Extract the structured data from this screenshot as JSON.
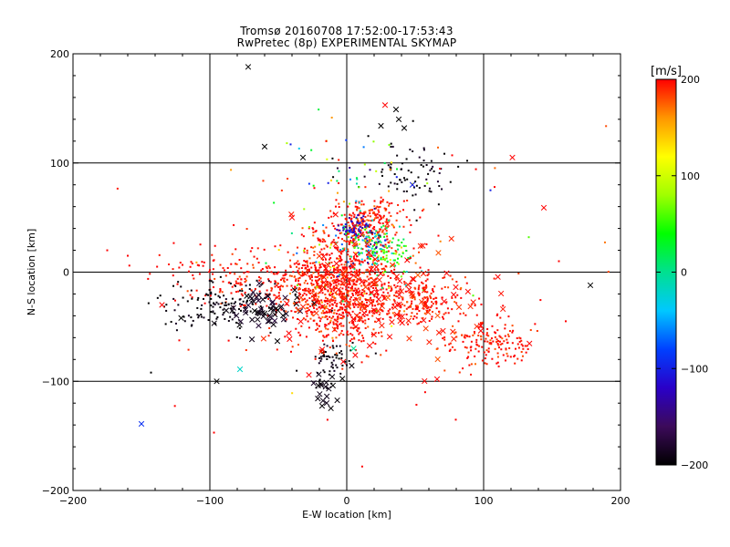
{
  "chart_data": {
    "type": "scatter",
    "title": "Tromsø 20160708 17:52:00-17:53:43",
    "subtitle": "RwPretec (8p) EXPERIMENTAL SKYMAP",
    "xlabel": "E-W location [km]",
    "ylabel": "N-S location [km]",
    "xlim": [
      -200,
      200
    ],
    "ylim": [
      -200,
      200
    ],
    "xticks": [
      -200,
      -100,
      0,
      100,
      200
    ],
    "yticks": [
      -200,
      -100,
      0,
      100,
      200
    ],
    "grid_lines": [
      -100,
      0,
      100
    ],
    "colorbar": {
      "label": "[m/s]",
      "range": [
        -200,
        200
      ],
      "ticks": [
        200,
        100,
        0,
        -100,
        -200
      ],
      "colormap": [
        "#000000",
        "#3c0a5a",
        "#2a00c8",
        "#0040ff",
        "#00c8ff",
        "#00e090",
        "#00ff00",
        "#a0ff00",
        "#ffff00",
        "#ff9600",
        "#ff0000"
      ]
    },
    "marker_legend": {
      "dot": "small point",
      "cross": "x marker"
    },
    "clusters": [
      {
        "center": [
          -5,
          -15
        ],
        "spread": [
          18,
          25
        ],
        "count": 900,
        "velocity": 200,
        "vspread": 15,
        "marker": "dot"
      },
      {
        "center": [
          50,
          -25
        ],
        "spread": [
          20,
          12
        ],
        "count": 220,
        "velocity": 195,
        "vspread": 10,
        "marker": "dot"
      },
      {
        "center": [
          105,
          -65
        ],
        "spread": [
          18,
          10
        ],
        "count": 160,
        "velocity": 195,
        "vspread": 10,
        "marker": "dot"
      },
      {
        "center": [
          -50,
          -10
        ],
        "spread": [
          28,
          15
        ],
        "count": 180,
        "velocity": 195,
        "vspread": 10,
        "marker": "dot"
      },
      {
        "center": [
          -100,
          5
        ],
        "spread": [
          25,
          10
        ],
        "count": 50,
        "velocity": 200,
        "vspread": 5,
        "marker": "dot"
      },
      {
        "center": [
          15,
          45
        ],
        "spread": [
          12,
          12
        ],
        "count": 220,
        "velocity": 195,
        "vspread": 15,
        "marker": "dot"
      },
      {
        "center": [
          -90,
          -30
        ],
        "spread": [
          22,
          12
        ],
        "count": 140,
        "velocity": -195,
        "vspread": 8,
        "marker": "dot"
      },
      {
        "center": [
          -60,
          -35
        ],
        "spread": [
          15,
          10
        ],
        "count": 60,
        "velocity": -190,
        "vspread": 10,
        "marker": "cross"
      },
      {
        "center": [
          -10,
          -80
        ],
        "spread": [
          8,
          10
        ],
        "count": 60,
        "velocity": -195,
        "vspread": 8,
        "marker": "dot"
      },
      {
        "center": [
          -15,
          -105
        ],
        "spread": [
          6,
          8
        ],
        "count": 20,
        "velocity": -195,
        "vspread": 5,
        "marker": "cross"
      },
      {
        "center": [
          45,
          90
        ],
        "spread": [
          15,
          15
        ],
        "count": 70,
        "velocity": -195,
        "vspread": 8,
        "marker": "dot"
      },
      {
        "center": [
          15,
          30
        ],
        "spread": [
          10,
          10
        ],
        "count": 120,
        "velocity": -20,
        "vspread": 80,
        "marker": "dot"
      },
      {
        "center": [
          5,
          40
        ],
        "spread": [
          6,
          6
        ],
        "count": 50,
        "velocity": -120,
        "vspread": 15,
        "marker": "dot"
      },
      {
        "center": [
          30,
          15
        ],
        "spread": [
          10,
          8
        ],
        "count": 70,
        "velocity": 40,
        "vspread": 40,
        "marker": "dot"
      },
      {
        "center": [
          10,
          5
        ],
        "spread": [
          25,
          25
        ],
        "count": 60,
        "velocity": 60,
        "vspread": 80,
        "marker": "dot"
      },
      {
        "center": [
          10,
          95
        ],
        "spread": [
          25,
          20
        ],
        "count": 50,
        "velocity": 0,
        "vspread": 120,
        "marker": "dot"
      },
      {
        "center": [
          10,
          -20
        ],
        "spread": [
          30,
          30
        ],
        "count": 110,
        "velocity": 195,
        "vspread": 10,
        "marker": "cross"
      },
      {
        "center": [
          60,
          -40
        ],
        "spread": [
          30,
          20
        ],
        "count": 35,
        "velocity": 195,
        "vspread": 10,
        "marker": "cross"
      },
      {
        "center": [
          0,
          0
        ],
        "spread": [
          80,
          60
        ],
        "count": 90,
        "velocity": 190,
        "vspread": 20,
        "marker": "dot"
      }
    ],
    "points": [
      {
        "x": -72,
        "y": 188,
        "v": -200,
        "m": "cross"
      },
      {
        "x": 28,
        "y": 153,
        "v": 200,
        "m": "cross"
      },
      {
        "x": 36,
        "y": 149,
        "v": -200,
        "m": "cross"
      },
      {
        "x": 38,
        "y": 140,
        "v": -200,
        "m": "cross"
      },
      {
        "x": 25,
        "y": 134,
        "v": -200,
        "m": "cross"
      },
      {
        "x": 42,
        "y": 132,
        "v": -200,
        "m": "cross"
      },
      {
        "x": -60,
        "y": 115,
        "v": -200,
        "m": "cross"
      },
      {
        "x": 121,
        "y": 105,
        "v": 200,
        "m": "cross"
      },
      {
        "x": -32,
        "y": 105,
        "v": -200,
        "m": "cross"
      },
      {
        "x": 144,
        "y": 59,
        "v": 200,
        "m": "cross"
      },
      {
        "x": 178,
        "y": -12,
        "v": -200,
        "m": "cross"
      },
      {
        "x": -150,
        "y": -139,
        "v": -90,
        "m": "cross"
      },
      {
        "x": -95,
        "y": -100,
        "v": -200,
        "m": "cross"
      },
      {
        "x": -78,
        "y": -89,
        "v": -20,
        "m": "cross"
      },
      {
        "x": 66,
        "y": -98,
        "v": 200,
        "m": "cross"
      },
      {
        "x": -121,
        "y": -42,
        "v": -200,
        "m": "cross"
      },
      {
        "x": -135,
        "y": -30,
        "v": 200,
        "m": "cross"
      },
      {
        "x": 5,
        "y": -70,
        "v": 0,
        "m": "cross"
      },
      {
        "x": 48,
        "y": 80,
        "v": -100,
        "m": "cross"
      },
      {
        "x": -40,
        "y": 50,
        "v": 200,
        "m": "cross"
      },
      {
        "x": -175,
        "y": 20,
        "v": 200,
        "m": "dot"
      },
      {
        "x": -160,
        "y": 15,
        "v": 200,
        "m": "dot"
      },
      {
        "x": -97,
        "y": -147,
        "v": 200,
        "m": "dot"
      },
      {
        "x": -143,
        "y": -92,
        "v": -200,
        "m": "dot"
      },
      {
        "x": 155,
        "y": 10,
        "v": 200,
        "m": "dot"
      },
      {
        "x": 160,
        "y": -45,
        "v": 200,
        "m": "dot"
      },
      {
        "x": 133,
        "y": 32,
        "v": 60,
        "m": "dot"
      },
      {
        "x": 108,
        "y": 78,
        "v": 200,
        "m": "dot"
      },
      {
        "x": -41,
        "y": 117,
        "v": -100,
        "m": "dot"
      },
      {
        "x": -15,
        "y": 120,
        "v": 200,
        "m": "dot"
      },
      {
        "x": 77,
        "y": 107,
        "v": 200,
        "m": "dot"
      },
      {
        "x": 88,
        "y": 102,
        "v": -200,
        "m": "dot"
      },
      {
        "x": 105,
        "y": 75,
        "v": -100,
        "m": "dot"
      }
    ]
  }
}
